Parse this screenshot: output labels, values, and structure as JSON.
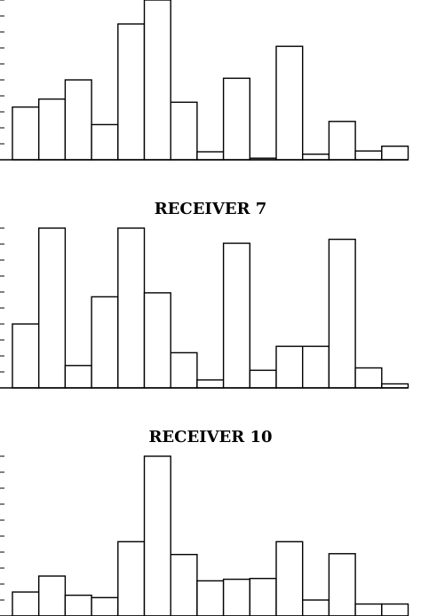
{
  "chart_data": [
    {
      "type": "bar",
      "title": "",
      "xlabel": "",
      "ylabel": "",
      "ylim": [
        0,
        10
      ],
      "values": [
        3.3,
        3.8,
        5.0,
        2.2,
        8.5,
        10.0,
        3.6,
        0.5,
        5.1,
        0.1,
        7.1,
        0.35,
        2.4,
        0.55,
        0.85
      ]
    },
    {
      "type": "bar",
      "title": "RECEIVER 7",
      "xlabel": "",
      "ylabel": "",
      "ylim": [
        0,
        10
      ],
      "values": [
        4.0,
        10.0,
        1.4,
        5.7,
        10.0,
        5.95,
        2.2,
        0.5,
        9.05,
        1.1,
        2.6,
        2.6,
        9.3,
        1.25,
        0.25
      ]
    },
    {
      "type": "bar",
      "title": "RECEIVER 10",
      "xlabel": "",
      "ylabel": "",
      "ylim": [
        0,
        10
      ],
      "values": [
        1.5,
        2.5,
        1.3,
        1.15,
        4.65,
        10.0,
        3.85,
        2.2,
        2.3,
        2.35,
        4.65,
        1.0,
        3.9,
        0.75,
        0.75
      ]
    }
  ]
}
